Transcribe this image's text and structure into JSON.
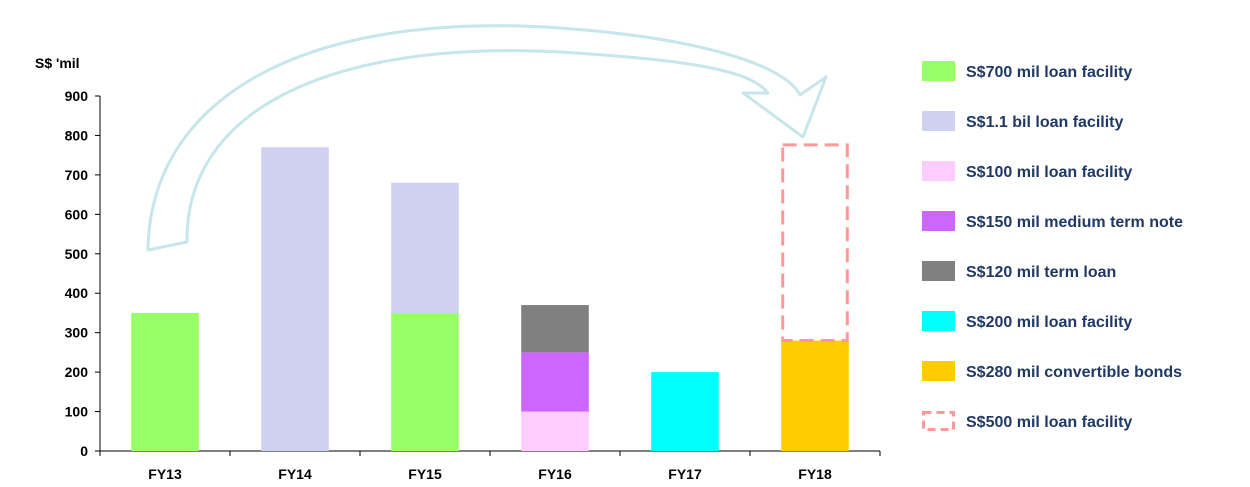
{
  "chart_data": {
    "type": "bar",
    "stacked": true,
    "ylabel": "S$ 'mil",
    "ylim": [
      0,
      900
    ],
    "yticks": [
      0,
      100,
      200,
      300,
      400,
      500,
      600,
      700,
      800,
      900
    ],
    "categories": [
      "FY13",
      "FY14",
      "FY15",
      "FY16",
      "FY17",
      "FY18"
    ],
    "legend_position": "right",
    "series": [
      {
        "name": "S$700 mil loan facility",
        "color": "#99ff66",
        "values": [
          350,
          0,
          350,
          0,
          0,
          0
        ]
      },
      {
        "name": "S$1.1 bil loan facility",
        "color": "#d0d0f0",
        "values": [
          0,
          770,
          330,
          0,
          0,
          0
        ]
      },
      {
        "name": "S$100 mil loan facility",
        "color": "#ffccff",
        "values": [
          0,
          0,
          0,
          100,
          0,
          0
        ]
      },
      {
        "name": "S$150 mil medium term note",
        "color": "#cc66ff",
        "values": [
          0,
          0,
          0,
          150,
          0,
          0
        ]
      },
      {
        "name": "S$120 mil term loan",
        "color": "#808080",
        "values": [
          0,
          0,
          0,
          120,
          0,
          0
        ]
      },
      {
        "name": "S$200 mil loan facility",
        "color": "#00ffff",
        "values": [
          0,
          0,
          0,
          0,
          200,
          0
        ]
      },
      {
        "name": "S$280 mil convertible bonds",
        "color": "#ffcc00",
        "values": [
          0,
          0,
          0,
          0,
          0,
          280
        ]
      },
      {
        "name": "S$500 mil loan facility",
        "color": "#ff9999",
        "style": "dashed-outline",
        "values": [
          0,
          0,
          0,
          0,
          0,
          500
        ]
      }
    ],
    "annotations": [
      {
        "type": "curved-arrow",
        "from": "FY13",
        "to": "FY18"
      }
    ]
  }
}
